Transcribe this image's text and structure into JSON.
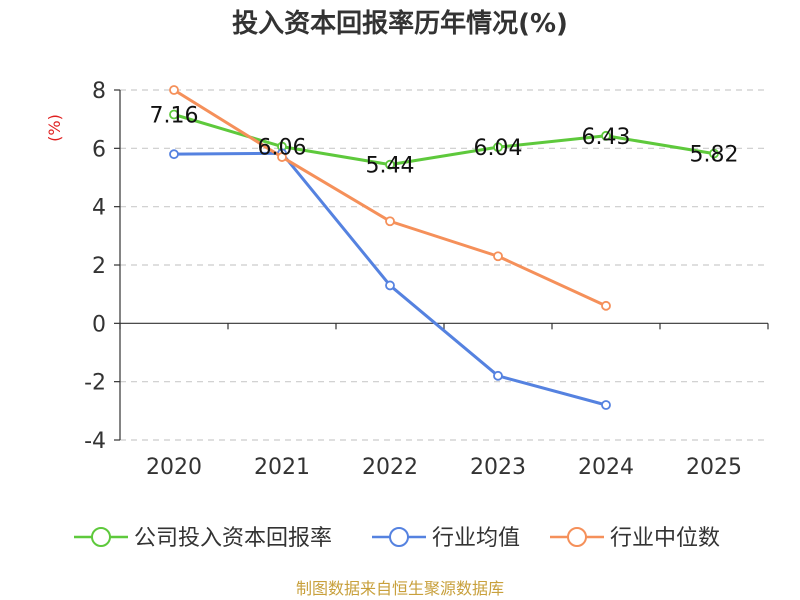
{
  "title": "投入资本回报率历年情况(%)",
  "unit_label": "(%)",
  "source_text": "制图数据来自恒生聚源数据库",
  "colors": {
    "company": "#5ec93c",
    "industry_avg": "#5582e0",
    "industry_median": "#f5905a"
  },
  "chart_data": {
    "type": "line",
    "title": "投入资本回报率历年情况(%)",
    "ylabel": "(%)",
    "xlabel": "",
    "categories": [
      "2020",
      "2021",
      "2022",
      "2023",
      "2024",
      "2025"
    ],
    "ylim": [
      -4,
      8
    ],
    "yticks": [
      8,
      6,
      4,
      2,
      0,
      -2,
      -4
    ],
    "grid": true,
    "legend_position": "bottom",
    "series": [
      {
        "name": "公司投入资本回报率",
        "values": [
          7.16,
          6.06,
          5.44,
          6.04,
          6.43,
          5.82
        ],
        "labels": [
          "7.16",
          "6.06",
          "5.44",
          "6.04",
          "6.43",
          "5.82"
        ]
      },
      {
        "name": "行业均值",
        "values": [
          5.8,
          5.83,
          1.3,
          -1.8,
          -2.8,
          null
        ]
      },
      {
        "name": "行业中位数",
        "values": [
          8.0,
          5.7,
          3.5,
          2.3,
          0.6,
          null
        ]
      }
    ]
  }
}
